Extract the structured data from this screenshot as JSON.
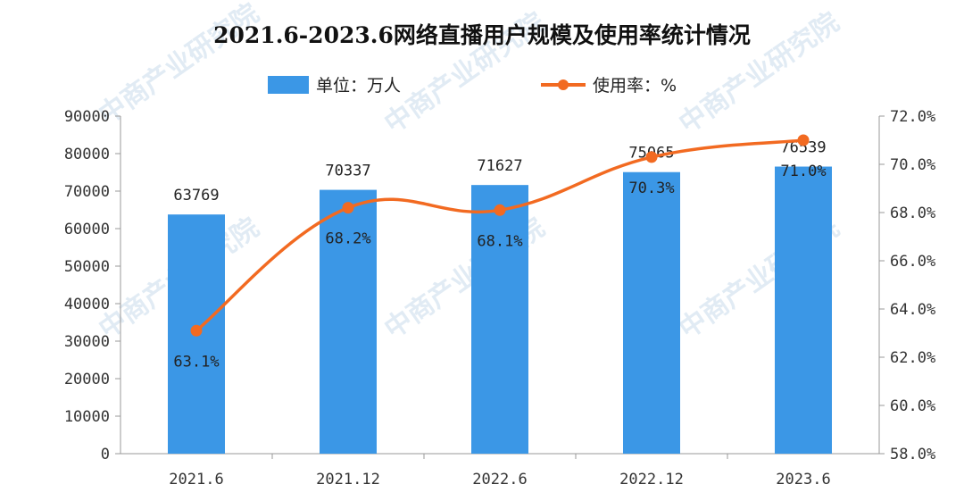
{
  "chart_data": {
    "type": "bar",
    "title": "2021.6-2023.6网络直播用户规模及使用率统计情况",
    "categories": [
      "2021.6",
      "2021.12",
      "2022.6",
      "2022.12",
      "2023.6"
    ],
    "series": [
      {
        "name": "单位：万人",
        "type": "bar",
        "axis": "left",
        "values": [
          63769,
          70337,
          71627,
          75065,
          76539
        ],
        "labels": [
          "63769",
          "70337",
          "71627",
          "75065",
          "76539"
        ]
      },
      {
        "name": "使用率：%",
        "type": "line",
        "axis": "right",
        "values": [
          63.1,
          68.2,
          68.1,
          70.3,
          71.0
        ],
        "labels": [
          "63.1%",
          "68.2%",
          "68.1%",
          "70.3%",
          "71.0%"
        ]
      }
    ],
    "y_left": {
      "range": [
        0,
        90000
      ],
      "ticks": [
        "0",
        "10000",
        "20000",
        "30000",
        "40000",
        "50000",
        "60000",
        "70000",
        "80000",
        "90000"
      ]
    },
    "y_right": {
      "range": [
        58,
        72
      ],
      "ticks": [
        "58.0%",
        "60.0%",
        "62.0%",
        "64.0%",
        "66.0%",
        "68.0%",
        "70.0%",
        "72.0%"
      ]
    },
    "grid": false,
    "legend_position": "top",
    "colors": {
      "bar": "#3b97e6",
      "line": "#f26a21",
      "axis": "#999999"
    }
  },
  "watermark": "中商产业研究院"
}
